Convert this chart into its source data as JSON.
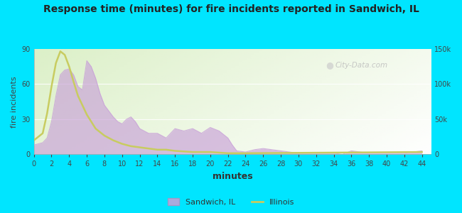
{
  "title": "Response time (minutes) for fire incidents reported in Sandwich, IL",
  "xlabel": "minutes",
  "ylabel_left": "fire incidents",
  "background_color": "#00e5ff",
  "x_ticks": [
    0,
    2,
    4,
    6,
    8,
    10,
    12,
    14,
    16,
    18,
    20,
    22,
    24,
    26,
    28,
    30,
    32,
    34,
    36,
    38,
    40,
    42,
    44
  ],
  "xlim": [
    0,
    45
  ],
  "ylim_left": [
    0,
    90
  ],
  "ylim_right": [
    0,
    150000
  ],
  "y_ticks_left": [
    0,
    30,
    60,
    90
  ],
  "y_ticks_right": [
    0,
    50000,
    100000,
    150000
  ],
  "y_tick_labels_right": [
    "0",
    "50k",
    "100k",
    "150k"
  ],
  "sandwich_color": "#c8a0d8",
  "illinois_color": "#c8cc60",
  "sandwich_x": [
    0,
    0.5,
    1,
    1.5,
    2,
    2.5,
    3,
    3.5,
    4,
    4.5,
    5,
    5.5,
    6,
    6.5,
    7,
    7.5,
    8,
    8.5,
    9,
    9.5,
    10,
    10.5,
    11,
    11.5,
    12,
    13,
    14,
    15,
    16,
    17,
    18,
    19,
    20,
    21,
    22,
    22.5,
    23,
    24,
    25,
    26,
    27,
    28,
    29,
    30,
    32,
    34,
    35,
    36,
    37,
    38,
    40,
    42,
    44
  ],
  "sandwich_y": [
    8,
    9,
    10,
    14,
    28,
    50,
    68,
    72,
    73,
    68,
    58,
    55,
    80,
    75,
    65,
    52,
    42,
    37,
    32,
    28,
    26,
    30,
    32,
    28,
    22,
    18,
    18,
    14,
    22,
    20,
    22,
    18,
    23,
    20,
    14,
    8,
    3,
    2,
    4,
    5,
    4,
    3,
    2,
    1,
    1,
    1,
    0,
    3,
    2,
    1,
    1,
    1,
    3
  ],
  "illinois_x": [
    0,
    0.5,
    1,
    1.5,
    2,
    2.5,
    3,
    3.5,
    4,
    4.5,
    5,
    5.5,
    6,
    6.5,
    7,
    8,
    9,
    10,
    11,
    12,
    13,
    14,
    15,
    16,
    18,
    20,
    22,
    24,
    44
  ],
  "illinois_y": [
    12,
    15,
    18,
    35,
    58,
    78,
    88,
    85,
    75,
    62,
    50,
    42,
    34,
    28,
    22,
    16,
    12,
    9,
    7,
    6,
    5,
    4,
    4,
    3,
    2,
    2,
    1,
    1,
    2
  ],
  "watermark": "City-Data.com",
  "legend_sandwich": "Sandwich, IL",
  "legend_illinois": "Illinois"
}
